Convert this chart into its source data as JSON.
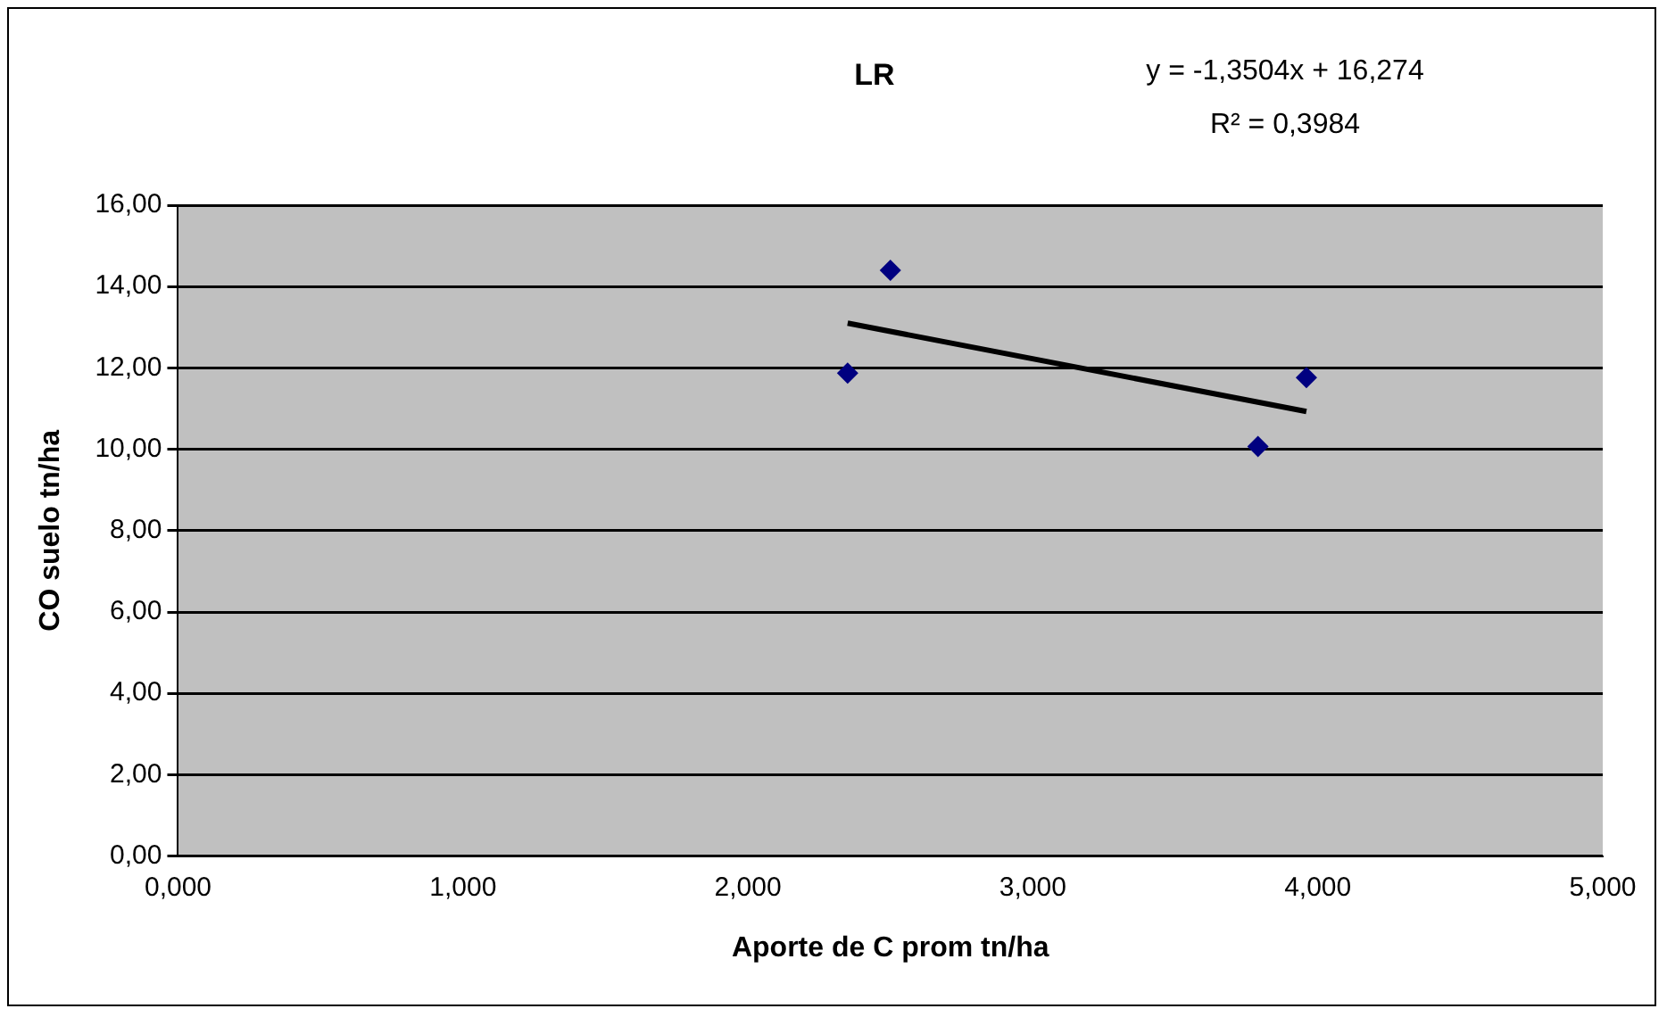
{
  "chart_data": {
    "type": "scatter",
    "title": "LR",
    "xlabel": "Aporte de C prom tn/ha",
    "ylabel": "CO suelo tn/ha",
    "annotations": [
      "y = -1,3504x + 16,274",
      "R² = 0,3984"
    ],
    "series": [
      {
        "type": "scatter",
        "color": "#000080",
        "x": [
          2.35,
          2.5,
          3.79,
          3.96
        ],
        "values": [
          11.87,
          14.4,
          10.07,
          11.76
        ],
        "marker": "diamond"
      },
      {
        "type": "line",
        "color": "#000000",
        "x": [
          2.35,
          3.96
        ],
        "values": [
          13.1,
          10.93
        ],
        "marker": "none",
        "line_style": "solid"
      }
    ],
    "xlim": [
      0,
      5
    ],
    "xticks": [
      {
        "value": 0,
        "label": "0,000"
      },
      {
        "value": 1,
        "label": "1,000"
      },
      {
        "value": 2,
        "label": "2,000"
      },
      {
        "value": 3,
        "label": "3,000"
      },
      {
        "value": 4,
        "label": "4,000"
      },
      {
        "value": 5,
        "label": "5,000"
      }
    ],
    "ylim": [
      0,
      16
    ],
    "yticks": [
      {
        "value": 0,
        "label": "0,00"
      },
      {
        "value": 2,
        "label": "2,00"
      },
      {
        "value": 4,
        "label": "4,00"
      },
      {
        "value": 6,
        "label": "6,00"
      },
      {
        "value": 8,
        "label": "8,00"
      },
      {
        "value": 10,
        "label": "10,00"
      },
      {
        "value": 12,
        "label": "12,00"
      },
      {
        "value": 14,
        "label": "14,00"
      },
      {
        "value": 16,
        "label": "16,00"
      }
    ],
    "grid": "y",
    "legend": false
  }
}
